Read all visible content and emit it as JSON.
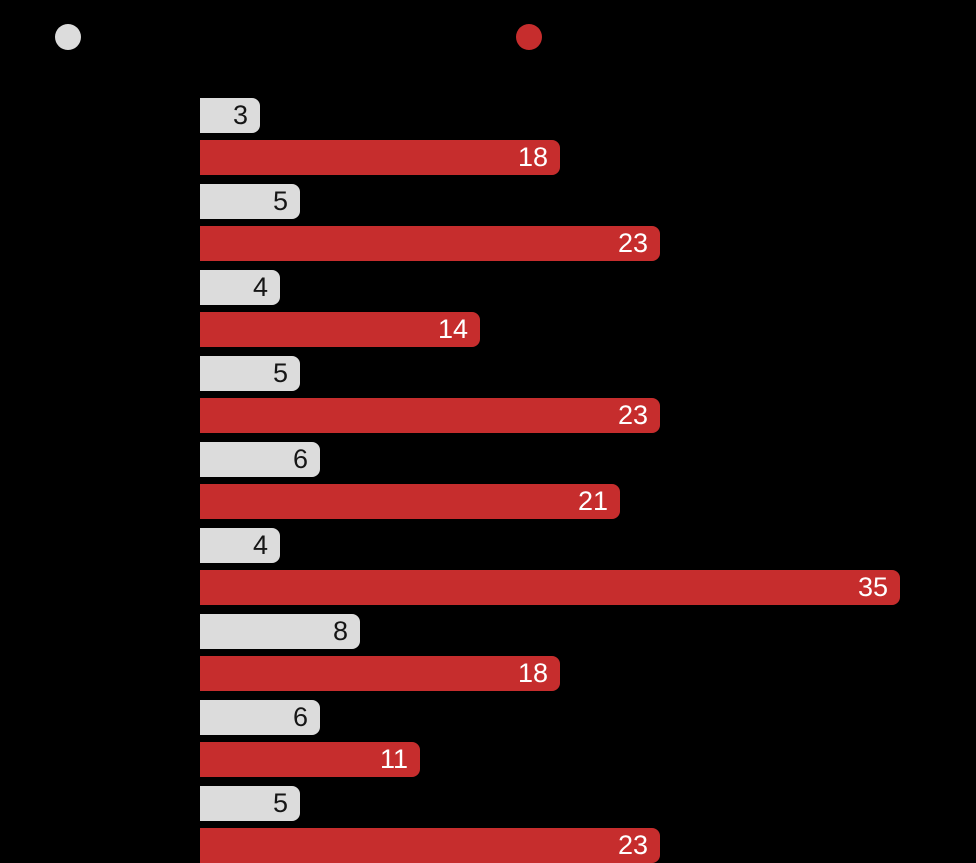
{
  "background_color": "#000000",
  "legend": {
    "position": "top",
    "items": [
      {
        "name": "series-gray",
        "label": "",
        "color": "#DCDCDC"
      },
      {
        "name": "series-red",
        "label": "",
        "color": "#C62D2D"
      }
    ]
  },
  "chart_data": {
    "type": "bar",
    "orientation": "horizontal",
    "grouped": true,
    "title": "",
    "xlabel": "",
    "ylabel": "",
    "grid": false,
    "legend_position": "top",
    "value_labels": "inside-end",
    "xlim": [
      0,
      38.8
    ],
    "num_groups": 9,
    "series": [
      {
        "name": "",
        "color": "#DCDCDC",
        "label_color": "#161616",
        "values": [
          3,
          5,
          4,
          5,
          6,
          4,
          8,
          6,
          5
        ]
      },
      {
        "name": "",
        "color": "#C62D2D",
        "label_color": "#FFFFFF",
        "values": [
          18,
          23,
          14,
          23,
          21,
          35,
          18,
          11,
          23
        ]
      }
    ]
  }
}
